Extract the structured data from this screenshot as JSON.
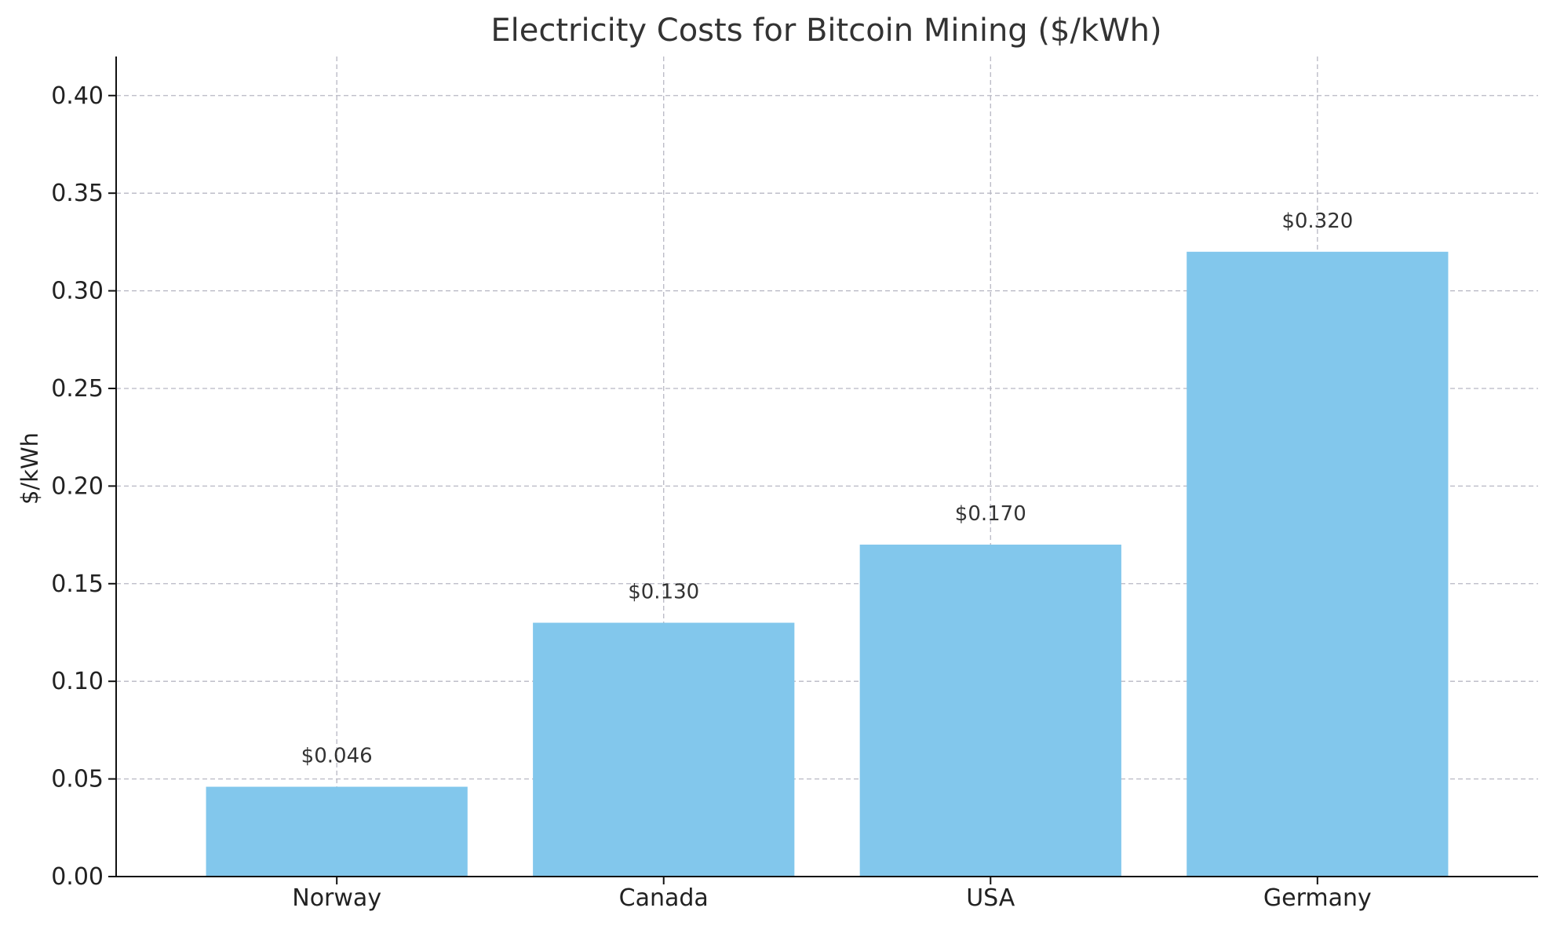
{
  "chart_data": {
    "type": "bar",
    "title": "Electricity Costs for Bitcoin Mining ($/kWh)",
    "xlabel": "",
    "ylabel": "$/kWh",
    "categories": [
      "Norway",
      "Canada",
      "USA",
      "Germany"
    ],
    "values": [
      0.046,
      0.13,
      0.17,
      0.32
    ],
    "data_labels": [
      "$0.046",
      "$0.130",
      "$0.170",
      "$0.320"
    ],
    "ylim": [
      0,
      0.42
    ],
    "yticks": [
      0.0,
      0.05,
      0.1,
      0.15,
      0.2,
      0.25,
      0.3,
      0.35,
      0.4
    ],
    "ytick_labels": [
      "0.00",
      "0.05",
      "0.10",
      "0.15",
      "0.20",
      "0.25",
      "0.30",
      "0.35",
      "0.40"
    ],
    "grid": true,
    "bar_color": "#82c7ec"
  }
}
